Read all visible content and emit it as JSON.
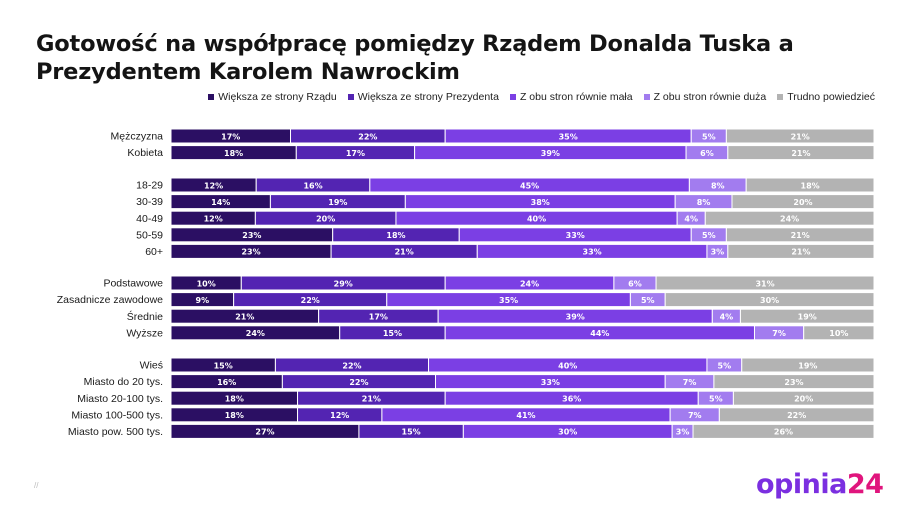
{
  "title": "Gotowość na współpracę pomiędzy Rządem Donalda Tuska a Prezydentem Karolem Nawrockim",
  "logo": {
    "part1": "opinia",
    "part2": "24"
  },
  "footnote": "//",
  "chart_data": {
    "type": "bar",
    "orientation": "horizontal",
    "stacked": true,
    "value_suffix": "%",
    "xlim": [
      0,
      100
    ],
    "legend_position": "top-right",
    "series": [
      {
        "name": "Większa ze strony Rządu",
        "color": "#2b0f63"
      },
      {
        "name": "Większa ze strony Prezydenta",
        "color": "#5324b2"
      },
      {
        "name": "Z obu stron równie mała",
        "color": "#7b3fe4"
      },
      {
        "name": "Z obu stron równie duża",
        "color": "#a27cef"
      },
      {
        "name": "Trudno powiedzieć",
        "color": "#b3b3b3"
      }
    ],
    "groups": [
      {
        "rows": [
          {
            "label": "Mężczyzna",
            "values": [
              17,
              22,
              35,
              5,
              21
            ]
          },
          {
            "label": "Kobieta",
            "values": [
              18,
              17,
              39,
              6,
              21
            ]
          }
        ]
      },
      {
        "rows": [
          {
            "label": "18-29",
            "values": [
              12,
              16,
              45,
              8,
              18
            ]
          },
          {
            "label": "30-39",
            "values": [
              14,
              19,
              38,
              8,
              20
            ]
          },
          {
            "label": "40-49",
            "values": [
              12,
              20,
              40,
              4,
              24
            ]
          },
          {
            "label": "50-59",
            "values": [
              23,
              18,
              33,
              5,
              21
            ]
          },
          {
            "label": "60+",
            "values": [
              23,
              21,
              33,
              3,
              21
            ]
          }
        ]
      },
      {
        "rows": [
          {
            "label": "Podstawowe",
            "values": [
              10,
              29,
              24,
              6,
              31
            ]
          },
          {
            "label": "Zasadnicze zawodowe",
            "values": [
              9,
              22,
              35,
              5,
              30
            ]
          },
          {
            "label": "Średnie",
            "values": [
              21,
              17,
              39,
              4,
              19
            ]
          },
          {
            "label": "Wyższe",
            "values": [
              24,
              15,
              44,
              7,
              10
            ]
          }
        ]
      },
      {
        "rows": [
          {
            "label": "Wieś",
            "values": [
              15,
              22,
              40,
              5,
              19
            ]
          },
          {
            "label": "Miasto do 20 tys.",
            "values": [
              16,
              22,
              33,
              7,
              23
            ]
          },
          {
            "label": "Miasto 20-100 tys.",
            "values": [
              18,
              21,
              36,
              5,
              20
            ]
          },
          {
            "label": "Miasto 100-500 tys.",
            "values": [
              18,
              12,
              41,
              7,
              22
            ]
          },
          {
            "label": "Miasto pow. 500 tys.",
            "values": [
              27,
              15,
              30,
              3,
              26
            ]
          }
        ]
      }
    ]
  }
}
